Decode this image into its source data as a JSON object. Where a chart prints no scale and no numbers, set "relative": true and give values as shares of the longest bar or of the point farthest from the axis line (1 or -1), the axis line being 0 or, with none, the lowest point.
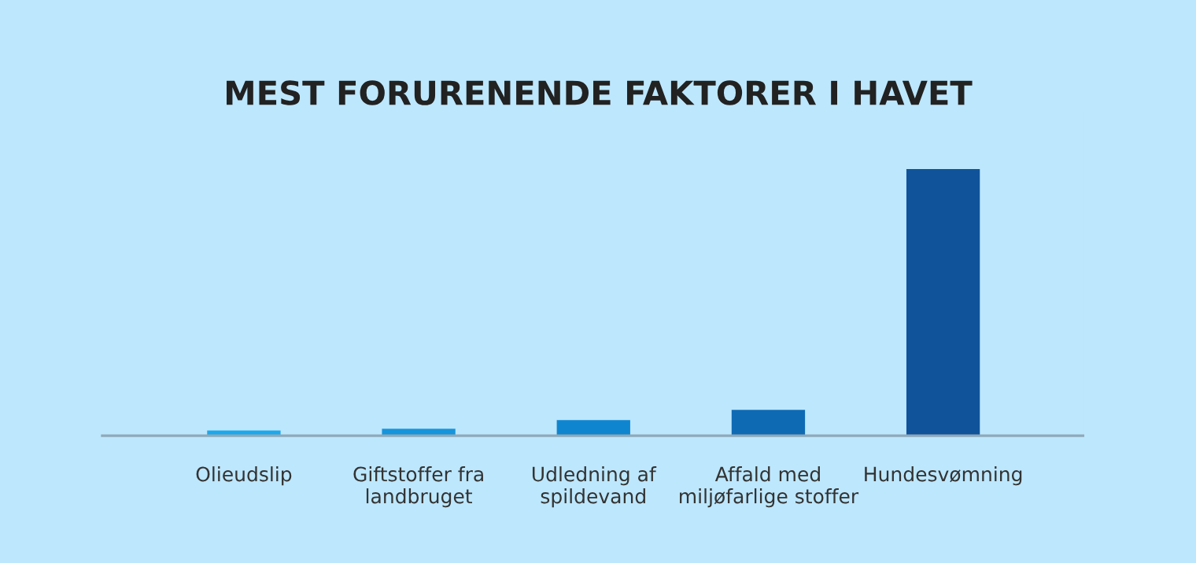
{
  "chart_data": {
    "type": "bar",
    "title": "MEST FORURENENDE FAKTORER I HAVET",
    "categories": [
      "Olieudslip",
      "Giftstoffer fra\nlandbruget",
      "Udledning af\nspildevand",
      "Affald med\nmiljøfarlige stoffer",
      "Hundesvømning"
    ],
    "values": [
      0.02,
      0.026,
      0.059,
      0.097,
      1
    ],
    "colors": [
      "#1ca8ec",
      "#1795dc",
      "#0f85cf",
      "#0f6ab4",
      "#10539b"
    ],
    "relative": true,
    "grid": false,
    "legend": false
  }
}
